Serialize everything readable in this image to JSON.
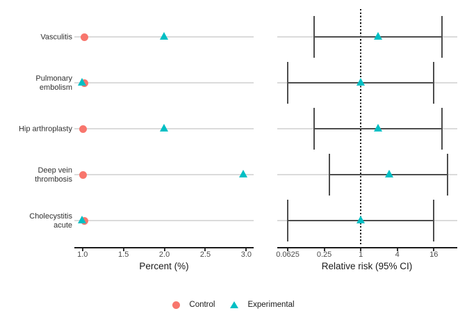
{
  "chart_data": {
    "type": "scatter",
    "subtype": "two-panel dot plot with forest plot (95% CI error bars)",
    "categories": [
      "Vasculitis",
      "Pulmonary embolism",
      "Hip arthroplasty",
      "Deep vein thrombosis",
      "Cholecystitis acute"
    ],
    "panels": [
      {
        "id": "percent",
        "xlabel": "Percent (%)",
        "scale": "linear",
        "ticks": [
          1.0,
          1.5,
          2.0,
          2.5,
          3.0
        ],
        "tick_labels": [
          "1.0",
          "1.5",
          "2.0",
          "2.5",
          "3.0"
        ],
        "xlim": [
          0.9,
          3.09
        ],
        "grid": "light horizontal line per category row"
      },
      {
        "id": "relative-risk",
        "xlabel": "Relative risk (95% CI)",
        "scale": "log",
        "log_base": 4,
        "ticks": [
          0.0625,
          0.25,
          1,
          4,
          16
        ],
        "tick_labels": [
          "0.0625",
          "0.25",
          "1",
          "4",
          "16"
        ],
        "xlim": [
          0.042,
          39
        ],
        "reference_line_x": 1,
        "reference_line_style": "dotted",
        "grid": "light horizontal line per category row"
      }
    ],
    "series": [
      {
        "name": "Control",
        "marker": "circle",
        "color": "#F8766D",
        "percent": [
          1.02,
          1.02,
          1.01,
          1.01,
          1.02
        ]
      },
      {
        "name": "Experimental",
        "marker": "triangle",
        "color": "#00BFC4",
        "percent": [
          2.0,
          1.0,
          2.0,
          2.97,
          1.0
        ]
      }
    ],
    "relative_risk": {
      "marker": "triangle",
      "color": "#00BFC4",
      "point": [
        1.93,
        1.0,
        1.93,
        2.95,
        1.0
      ],
      "ci_low": [
        0.17,
        0.0625,
        0.17,
        0.3,
        0.0625
      ],
      "ci_high": [
        22,
        15.8,
        22,
        27.2,
        15.8
      ]
    },
    "legend_position": "bottom-center"
  },
  "legend": {
    "items": [
      {
        "label": "Control",
        "marker": "circle",
        "color": "#F8766D"
      },
      {
        "label": "Experimental",
        "marker": "triangle",
        "color": "#00BFC4"
      }
    ]
  },
  "colors": {
    "control": "#F8766D",
    "experimental": "#00BFC4",
    "row_line": "#DBDBDB",
    "error_bar": "#4D4D4D",
    "reference_line": "#1A1A1A",
    "axis": "#1A1A1A",
    "background": "#FFFFFF"
  }
}
